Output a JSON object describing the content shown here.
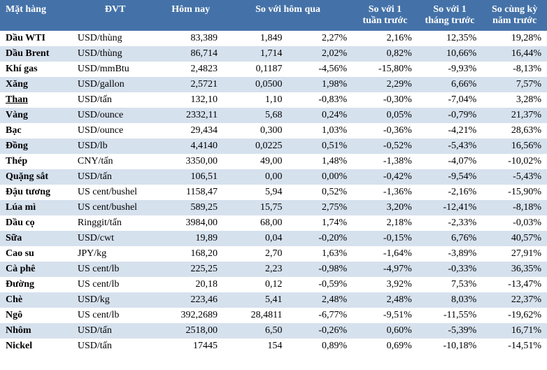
{
  "table": {
    "columns": [
      "Mặt hàng",
      "ĐVT",
      "Hôm nay",
      "So với hôm qua",
      "",
      "So với 1 tuần trước",
      "So với 1 tháng trước",
      "So cùng kỳ năm trước"
    ],
    "header_bg": "#4472a8",
    "header_color": "#ffffff",
    "row_odd_bg": "#ffffff",
    "row_even_bg": "#d6e1ee",
    "rows": [
      {
        "name": "Dầu WTI",
        "unit": "USD/thùng",
        "today": "83,389",
        "delta": "1,849",
        "delta_pct": "2,27%",
        "w": "2,16%",
        "m": "12,35%",
        "y": "19,28%",
        "underline": false
      },
      {
        "name": "Dầu Brent",
        "unit": "USD/thùng",
        "today": "86,714",
        "delta": "1,714",
        "delta_pct": "2,02%",
        "w": "0,82%",
        "m": "10,66%",
        "y": "16,44%",
        "underline": false
      },
      {
        "name": "Khí gas",
        "unit": "USD/mmBtu",
        "today": "2,4823",
        "delta": "0,1187",
        "delta_pct": "-4,56%",
        "w": "-15,80%",
        "m": "-9,93%",
        "y": "-8,13%",
        "underline": false
      },
      {
        "name": "Xăng",
        "unit": "USD/gallon",
        "today": "2,5721",
        "delta": "0,0500",
        "delta_pct": "1,98%",
        "w": "2,29%",
        "m": "6,66%",
        "y": "7,57%",
        "underline": false
      },
      {
        "name": "Than",
        "unit": "USD/tấn",
        "today": "132,10",
        "delta": "1,10",
        "delta_pct": "-0,83%",
        "w": "-0,30%",
        "m": "-7,04%",
        "y": "3,28%",
        "underline": true
      },
      {
        "name": "Vàng",
        "unit": "USD/ounce",
        "today": "2332,11",
        "delta": "5,68",
        "delta_pct": "0,24%",
        "w": "0,05%",
        "m": "-0,79%",
        "y": "21,37%",
        "underline": false
      },
      {
        "name": "Bạc",
        "unit": "USD/ounce",
        "today": "29,434",
        "delta": "0,300",
        "delta_pct": "1,03%",
        "w": "-0,36%",
        "m": "-4,21%",
        "y": "28,63%",
        "underline": false
      },
      {
        "name": "Đồng",
        "unit": "USD/lb",
        "today": "4,4140",
        "delta": "0,0225",
        "delta_pct": "0,51%",
        "w": "-0,52%",
        "m": "-5,43%",
        "y": "16,56%",
        "underline": false
      },
      {
        "name": "Thép",
        "unit": "CNY/tấn",
        "today": "3350,00",
        "delta": "49,00",
        "delta_pct": "1,48%",
        "w": "-1,38%",
        "m": "-4,07%",
        "y": "-10,02%",
        "underline": false
      },
      {
        "name": "Quặng sắt",
        "unit": "USD/tấn",
        "today": "106,51",
        "delta": "0,00",
        "delta_pct": "0,00%",
        "w": "-0,42%",
        "m": "-9,54%",
        "y": "-5,43%",
        "underline": false
      },
      {
        "name": "Đậu tương",
        "unit": "US cent/bushel",
        "today": "1158,47",
        "delta": "5,94",
        "delta_pct": "0,52%",
        "w": "-1,36%",
        "m": "-2,16%",
        "y": "-15,90%",
        "underline": false
      },
      {
        "name": "Lúa mì",
        "unit": "US cent/bushel",
        "today": "589,25",
        "delta": "15,75",
        "delta_pct": "2,75%",
        "w": "3,20%",
        "m": "-12,41%",
        "y": "-8,18%",
        "underline": false
      },
      {
        "name": "Dầu cọ",
        "unit": "Ringgit/tấn",
        "today": "3984,00",
        "delta": "68,00",
        "delta_pct": "1,74%",
        "w": "2,18%",
        "m": "-2,33%",
        "y": "-0,03%",
        "underline": false
      },
      {
        "name": "Sữa",
        "unit": "USD/cwt",
        "today": "19,89",
        "delta": "0,04",
        "delta_pct": "-0,20%",
        "w": "-0,15%",
        "m": "6,76%",
        "y": "40,57%",
        "underline": false
      },
      {
        "name": "Cao su",
        "unit": "JPY/kg",
        "today": "168,20",
        "delta": "2,70",
        "delta_pct": "1,63%",
        "w": "-1,64%",
        "m": "-3,89%",
        "y": "27,91%",
        "underline": false
      },
      {
        "name": "Cà phê",
        "unit": "US cent/lb",
        "today": "225,25",
        "delta": "2,23",
        "delta_pct": "-0,98%",
        "w": "-4,97%",
        "m": "-0,33%",
        "y": "36,35%",
        "underline": false
      },
      {
        "name": "Đường",
        "unit": "US cent/lb",
        "today": "20,18",
        "delta": "0,12",
        "delta_pct": "-0,59%",
        "w": "3,92%",
        "m": "7,53%",
        "y": "-13,47%",
        "underline": false
      },
      {
        "name": "Chè",
        "unit": "USD/kg",
        "today": "223,46",
        "delta": "5,41",
        "delta_pct": "2,48%",
        "w": "2,48%",
        "m": "8,03%",
        "y": "22,37%",
        "underline": false
      },
      {
        "name": "Ngô",
        "unit": "US cent/lb",
        "today": "392,2689",
        "delta": "28,4811",
        "delta_pct": "-6,77%",
        "w": "-9,51%",
        "m": "-11,55%",
        "y": "-19,62%",
        "underline": false
      },
      {
        "name": "Nhôm",
        "unit": "USD/tấn",
        "today": "2518,00",
        "delta": "6,50",
        "delta_pct": "-0,26%",
        "w": "0,60%",
        "m": "-5,39%",
        "y": "16,71%",
        "underline": false
      },
      {
        "name": "Nickel",
        "unit": "USD/tấn",
        "today": "17445",
        "delta": "154",
        "delta_pct": "0,89%",
        "w": "0,69%",
        "m": "-10,18%",
        "y": "-14,51%",
        "underline": false
      }
    ]
  }
}
